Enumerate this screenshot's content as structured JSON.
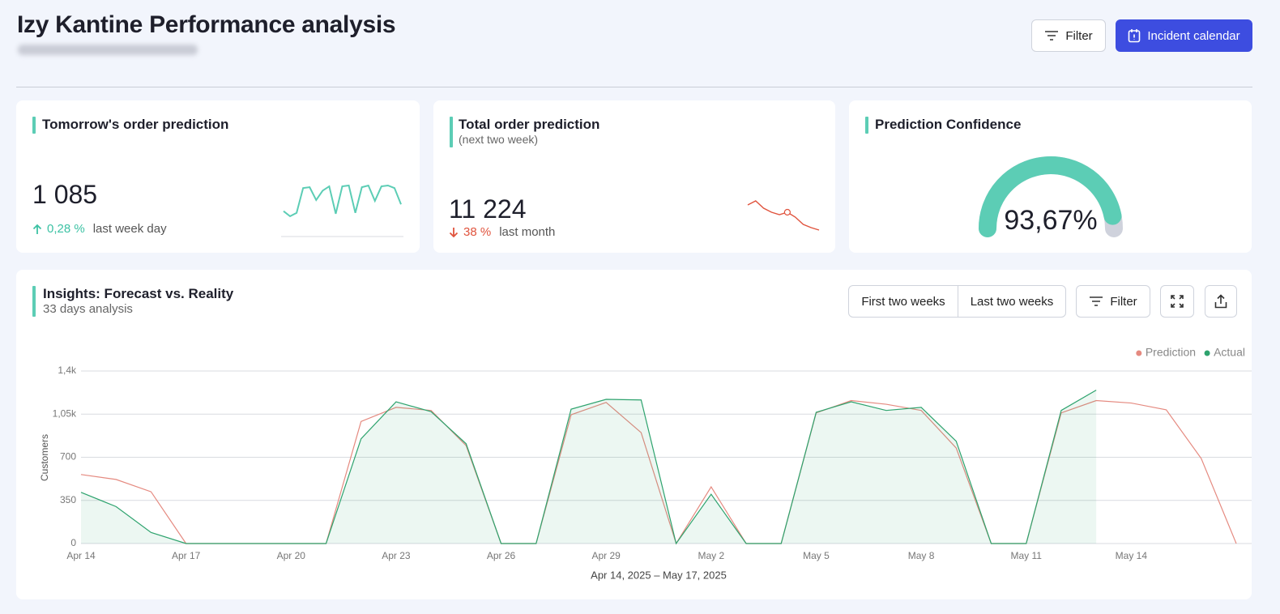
{
  "header": {
    "title": "Izy Kantine Performance analysis",
    "filter": "Filter",
    "incident_calendar": "Incident calendar"
  },
  "cards": [
    {
      "title": "Tomorrow's order prediction",
      "value": "1 085",
      "change": "0,28 %",
      "change_note": "last week day",
      "trend": "up",
      "sparkline": {
        "color": "#5ccdb5",
        "values": [
          10,
          4,
          8,
          37,
          38,
          23,
          34,
          39,
          7,
          39,
          40,
          8,
          38,
          40,
          22,
          39,
          40,
          37,
          18
        ]
      }
    },
    {
      "title": "Total order prediction",
      "subtitle": "(next two week)",
      "value": "11 224",
      "change": "38 %",
      "change_note": "last month",
      "trend": "down",
      "sparkline": {
        "color": "#e0533d",
        "values": [
          37,
          42,
          33,
          28,
          25,
          28,
          22,
          13,
          9,
          6
        ],
        "highlight": 5
      }
    }
  ],
  "confidence": {
    "title": "Prediction Confidence",
    "gauge": {
      "value": 93.67,
      "label": "93,67%",
      "range": [
        0,
        100
      ],
      "color": "#5ccdb5",
      "track_color": "#cfd2dc"
    }
  },
  "insights": {
    "title": "Insights: Forecast vs. Reality",
    "subtitle": "33 days analysis",
    "toggle": [
      "First two weeks",
      "Last two weeks"
    ],
    "filter": "Filter"
  },
  "chart_data": {
    "type": "line",
    "xlabel": "Apr 14, 2025 – May 17, 2025",
    "ylabel": "Customers",
    "categories": [
      "Apr 14",
      null,
      null,
      "Apr 17",
      null,
      null,
      "Apr 20",
      null,
      null,
      "Apr 23",
      null,
      null,
      "Apr 26",
      null,
      null,
      "Apr 29",
      null,
      null,
      "May 2",
      null,
      null,
      "May 5",
      null,
      null,
      "May 8",
      null,
      null,
      "May 11",
      null,
      null,
      "May 14",
      null,
      null,
      null
    ],
    "series": [
      {
        "name": "Prediction",
        "color": "#e58a80",
        "values": [
          560,
          520,
          420,
          0,
          0,
          0,
          0,
          0,
          990,
          1105,
          1080,
          795,
          0,
          0,
          1045,
          1145,
          900,
          0,
          460,
          0,
          0,
          1060,
          1160,
          1130,
          1080,
          775,
          0,
          0,
          1060,
          1160,
          1140,
          1085,
          690,
          0
        ]
      },
      {
        "name": "Actual",
        "color": "#2ea36e",
        "fill": true,
        "values": [
          415,
          300,
          90,
          0,
          0,
          0,
          0,
          0,
          850,
          1150,
          1070,
          810,
          0,
          0,
          1090,
          1170,
          1165,
          0,
          400,
          0,
          0,
          1065,
          1150,
          1080,
          1105,
          830,
          0,
          0,
          1080,
          1245,
          null,
          null,
          null,
          null
        ]
      }
    ],
    "ylim": [
      0,
      1400
    ],
    "yticks": [
      0,
      350,
      700,
      {
        "value": 1050,
        "label": "1,05k"
      },
      {
        "value": 1400,
        "label": "1,4k"
      }
    ],
    "grid": true,
    "legend": "top-right"
  }
}
